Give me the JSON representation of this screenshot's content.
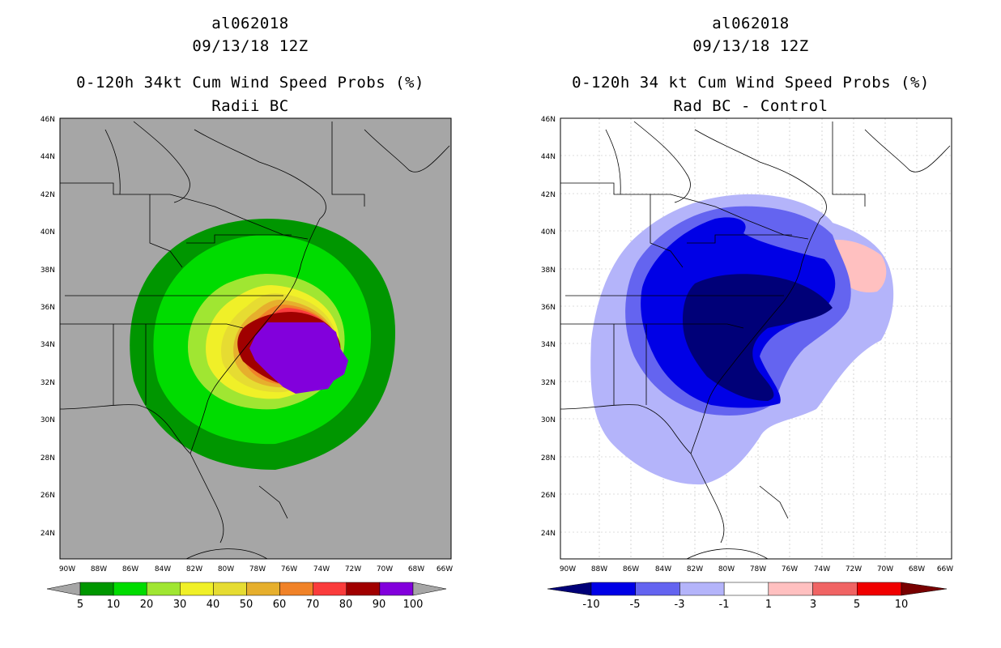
{
  "left_panel": {
    "storm_id": "al062018",
    "date": "09/13/18 12Z",
    "product_title": "0-120h 34kt Cum Wind Speed Probs (%)",
    "subtitle": "Radii BC",
    "lat_ticks": [
      "46N",
      "44N",
      "42N",
      "40N",
      "38N",
      "36N",
      "34N",
      "32N",
      "30N",
      "28N",
      "26N",
      "24N"
    ],
    "lon_ticks": [
      "90W",
      "88W",
      "86W",
      "84W",
      "82W",
      "80W",
      "78W",
      "76W",
      "74W",
      "72W",
      "70W",
      "68W",
      "66W"
    ],
    "colorbar": {
      "labels": [
        "5",
        "10",
        "20",
        "30",
        "40",
        "50",
        "60",
        "70",
        "80",
        "90",
        "100"
      ],
      "colors": [
        "#009600",
        "#00dc00",
        "#a0e632",
        "#f0f028",
        "#e6dc32",
        "#e6af2d",
        "#f08228",
        "#fa3c3c",
        "#a00000",
        "#8200dc"
      ],
      "under_color": "#a6a6a6",
      "over_color": "#a6a6a6"
    },
    "background_color": "#a6a6a6"
  },
  "right_panel": {
    "storm_id": "al062018",
    "date": "09/13/18 12Z",
    "product_title": "0-120h 34 kt Cum Wind Speed Probs (%)",
    "subtitle": "Rad BC - Control",
    "lat_ticks": [
      "46N",
      "44N",
      "42N",
      "40N",
      "38N",
      "36N",
      "34N",
      "32N",
      "30N",
      "28N",
      "26N",
      "24N"
    ],
    "lon_ticks": [
      "90W",
      "88W",
      "86W",
      "84W",
      "82W",
      "80W",
      "78W",
      "76W",
      "74W",
      "72W",
      "70W",
      "68W",
      "66W"
    ],
    "colorbar": {
      "labels": [
        "-10",
        "-5",
        "-3",
        "-1",
        "1",
        "3",
        "5",
        "10"
      ],
      "colors": [
        "#0000e6",
        "#6464f0",
        "#b4b4fa",
        "#ffffff",
        "#ffc0c0",
        "#f06464",
        "#f00000"
      ],
      "under_color": "#000078",
      "over_color": "#780000"
    },
    "background_color": "#ffffff"
  }
}
